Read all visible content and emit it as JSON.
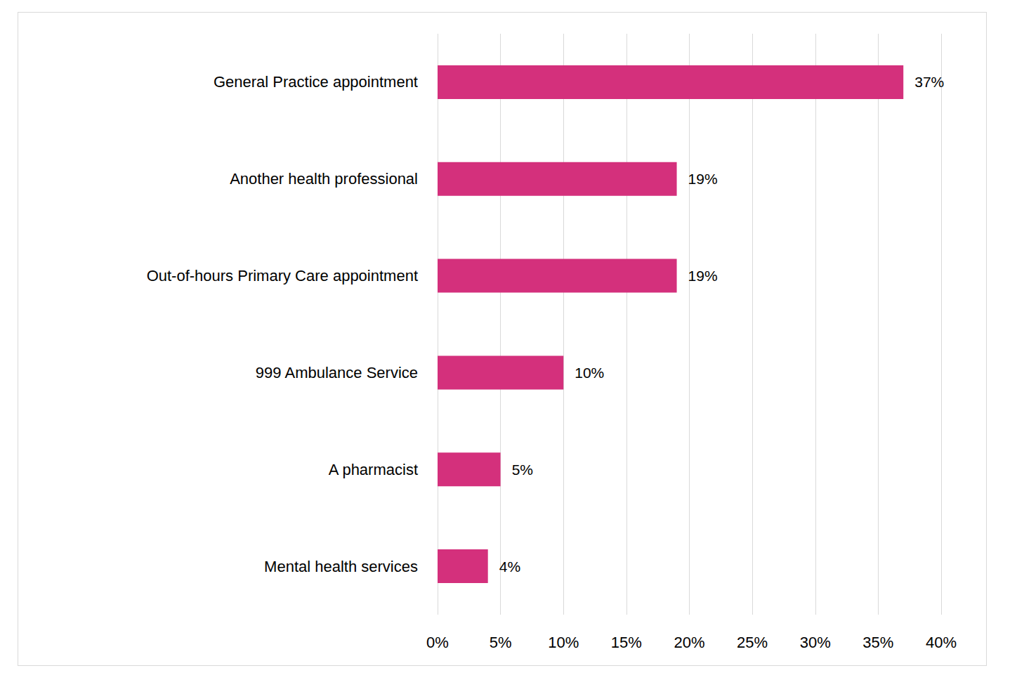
{
  "chart_data": {
    "type": "bar",
    "orientation": "horizontal",
    "categories": [
      "General Practice appointment",
      "Another health professional",
      "Out-of-hours Primary Care appointment",
      "999 Ambulance Service",
      "A pharmacist",
      "Mental health services"
    ],
    "values": [
      37,
      19,
      19,
      10,
      5,
      4
    ],
    "value_labels": [
      "37%",
      "19%",
      "19%",
      "10%",
      "5%",
      "4%"
    ],
    "color": "#d4307c",
    "xlim": [
      0,
      40
    ],
    "xticks": [
      {
        "value": 0,
        "label": "0%"
      },
      {
        "value": 5,
        "label": "5%"
      },
      {
        "value": 10,
        "label": "10%"
      },
      {
        "value": 15,
        "label": "15%"
      },
      {
        "value": 20,
        "label": "20%"
      },
      {
        "value": 25,
        "label": "25%"
      },
      {
        "value": 30,
        "label": "30%"
      },
      {
        "value": 35,
        "label": "35%"
      },
      {
        "value": 40,
        "label": "40%"
      }
    ],
    "grid": true,
    "data_labels": true
  }
}
